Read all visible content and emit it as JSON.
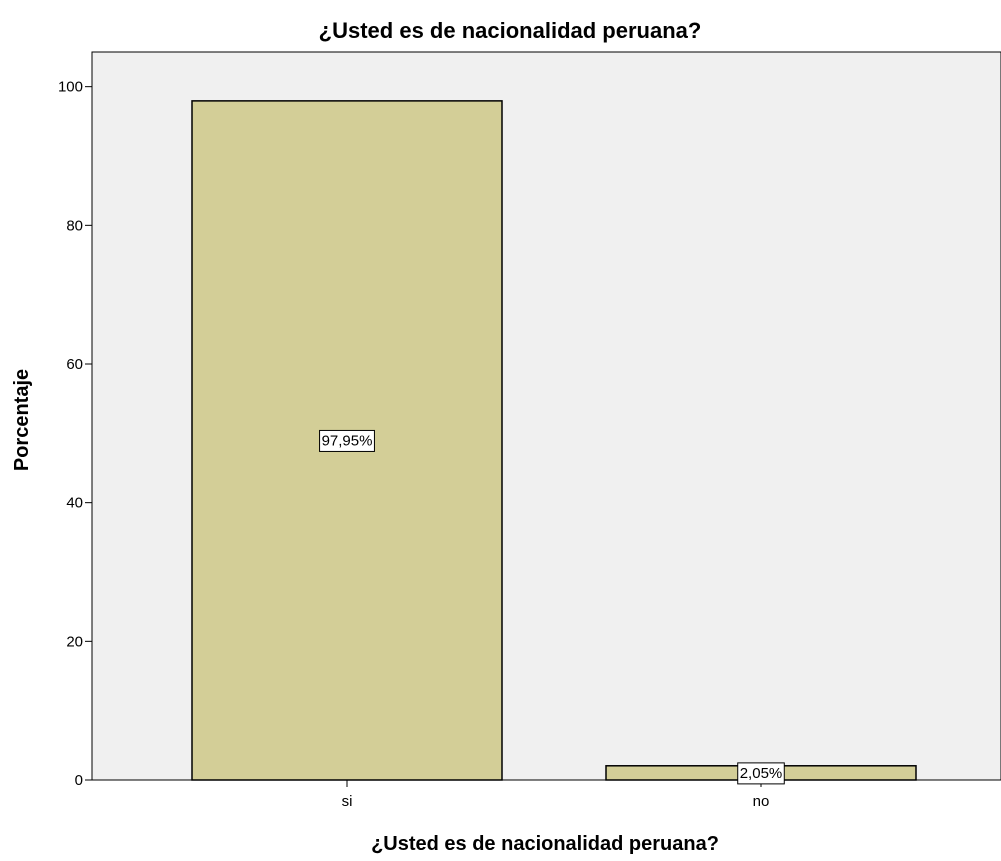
{
  "chart_data": {
    "type": "bar",
    "title": "¿Usted es de nacionalidad peruana?",
    "xlabel": "¿Usted es de nacionalidad peruana?",
    "ylabel": "Porcentaje",
    "categories": [
      "si",
      "no"
    ],
    "values": [
      97.95,
      2.05
    ],
    "data_labels": [
      "97,95%",
      "2,05%"
    ],
    "ylim": [
      0,
      105
    ],
    "yticks": [
      0,
      20,
      40,
      60,
      80,
      100
    ],
    "grid": false,
    "colors": {
      "plot_background": "#f0f0f0",
      "bar_fill": "#d3ce97",
      "bar_stroke": "#000000",
      "label_box_fill": "#ffffff"
    }
  }
}
